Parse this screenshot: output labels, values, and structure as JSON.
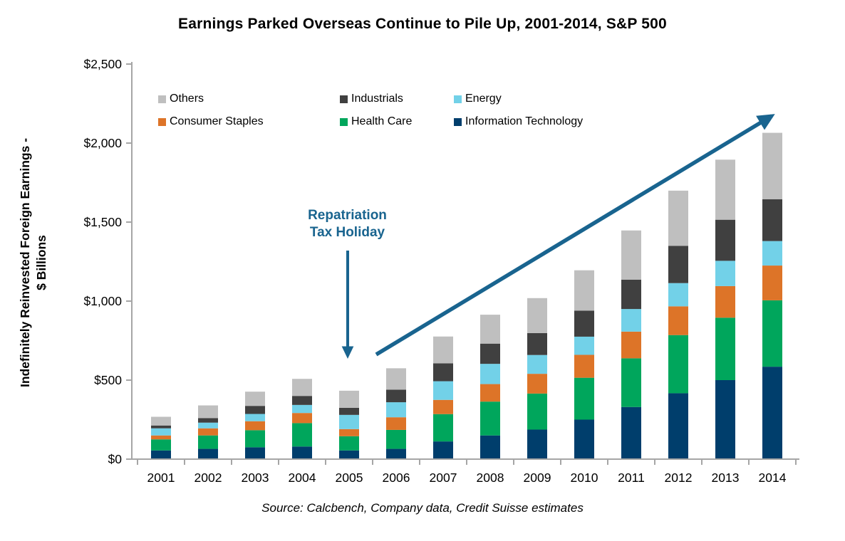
{
  "page": {
    "title": "Earnings Parked Overseas Continue to Pile Up, 2001-2014, S&P 500",
    "source": "Source: Calcbench, Company data, Credit Suisse estimates"
  },
  "chart_data": {
    "type": "bar",
    "stacked": true,
    "title": "Earnings Parked Overseas Continue to Pile Up, 2001-2014, S&P 500",
    "ylabel": "Indefinitely Reinvested Foreign Earnings - $ Billions",
    "ylabel_lines": [
      "Indefinitely Reinvested Foreign Earnings -",
      "$ Billions"
    ],
    "xlabel": "",
    "categories": [
      "2001",
      "2002",
      "2003",
      "2004",
      "2005",
      "2006",
      "2007",
      "2008",
      "2009",
      "2010",
      "2011",
      "2012",
      "2013",
      "2014"
    ],
    "series": [
      {
        "name": "Information Technology",
        "color": "#003e6c",
        "values": [
          55,
          65,
          75,
          80,
          55,
          65,
          112,
          150,
          187,
          250,
          330,
          417,
          500,
          585
        ]
      },
      {
        "name": "Health Care",
        "color": "#00a65c",
        "values": [
          70,
          85,
          108,
          148,
          90,
          120,
          173,
          214,
          228,
          265,
          308,
          368,
          395,
          420
        ]
      },
      {
        "name": "Consumer Staples",
        "color": "#dd7428",
        "values": [
          25,
          45,
          57,
          64,
          45,
          80,
          90,
          111,
          125,
          145,
          169,
          182,
          200,
          220
        ]
      },
      {
        "name": "Energy",
        "color": "#72d1e8",
        "values": [
          45,
          36,
          46,
          51,
          90,
          95,
          118,
          128,
          119,
          115,
          143,
          147,
          160,
          155
        ]
      },
      {
        "name": "Industrials",
        "color": "#404040",
        "values": [
          18,
          29,
          51,
          57,
          45,
          80,
          113,
          128,
          139,
          165,
          186,
          236,
          260,
          265
        ]
      },
      {
        "name": "Others",
        "color": "#bfbfbf",
        "values": [
          55,
          80,
          90,
          108,
          108,
          135,
          170,
          183,
          221,
          255,
          311,
          349,
          380,
          420
        ]
      }
    ],
    "totals": [
      268,
      340,
      427,
      508,
      433,
      575,
      776,
      914,
      1019,
      1195,
      1447,
      1699,
      1895,
      2065
    ],
    "legend_order": [
      "Others",
      "Industrials",
      "Energy",
      "Consumer Staples",
      "Health Care",
      "Information Technology"
    ],
    "legend_position": "inside-top-left",
    "grid": false,
    "ylim": [
      0,
      2500
    ],
    "y_ticks": [
      {
        "value": 0,
        "label": "$0"
      },
      {
        "value": 500,
        "label": "$500"
      },
      {
        "value": 1000,
        "label": "$1,000"
      },
      {
        "value": 1500,
        "label": "$1,500"
      },
      {
        "value": 2000,
        "label": "$2,000"
      },
      {
        "value": 2500,
        "label": "$2,500"
      }
    ],
    "annotation": {
      "text_lines": [
        "Repatriation",
        "Tax Holiday"
      ],
      "color": "#19648f",
      "points_to_category": "2005"
    },
    "trend_arrow": {
      "from_category": "2006",
      "to_category": "2014",
      "color": "#19648f"
    },
    "axis_color": "#a6a6a6",
    "source": "Source: Calcbench, Company data, Credit Suisse estimates"
  }
}
